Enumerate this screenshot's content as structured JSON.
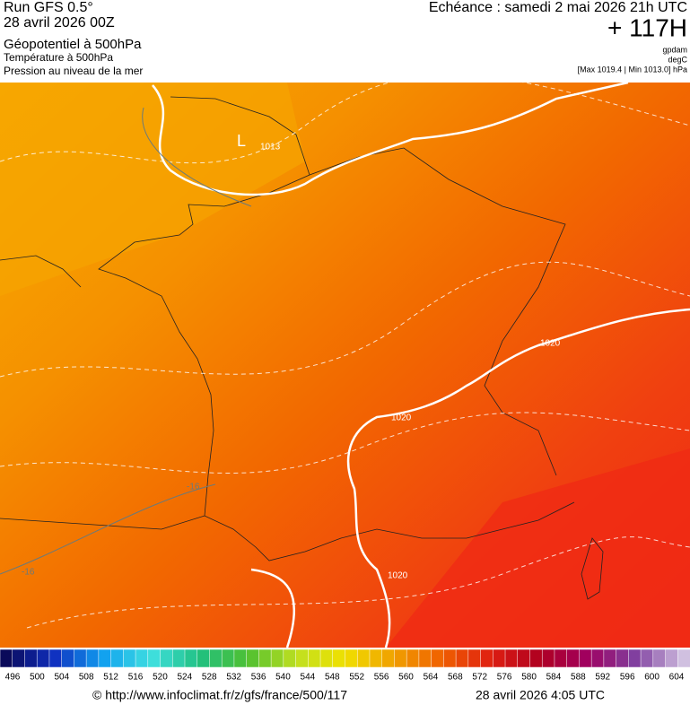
{
  "header": {
    "left": [
      "Run GFS 0.5°",
      "28 avril 2026 00Z",
      "Géopotentiel à 500hPa",
      "Température à 500hPa",
      "Pression au niveau de la mer"
    ],
    "right": {
      "title": "Echéance : samedi 2 mai 2026 21h UTC",
      "lead": "+ 117H",
      "units": [
        "gpdam",
        "degC",
        "[Max 1019.4 | Min 1013.0] hPa"
      ]
    }
  },
  "map": {
    "labels": [
      "L",
      "1013",
      "1020",
      "1020",
      "1020",
      "-16",
      "-16"
    ]
  },
  "scale": {
    "labels": [
      496,
      500,
      504,
      508,
      512,
      516,
      520,
      524,
      528,
      532,
      536,
      540,
      544,
      548,
      552,
      556,
      560,
      564,
      568,
      572,
      576,
      580,
      584,
      588,
      592,
      596,
      600,
      604
    ]
  },
  "footer": {
    "source": "© http://www.infoclimat.fr/z/gfs/france/500/117",
    "date": "28 avril 2026  4:05 UTC"
  }
}
